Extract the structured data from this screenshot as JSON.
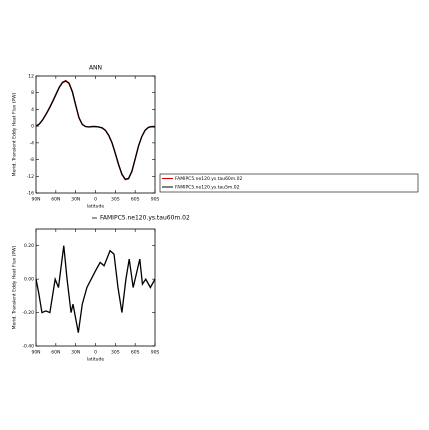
{
  "chart_data": [
    {
      "type": "line",
      "title": "ANN",
      "xlabel": "latitude",
      "ylabel": "Merid. Transient Eddy Heat Flux (PW)",
      "x": [
        90,
        85,
        80,
        75,
        70,
        65,
        60,
        55,
        50,
        45,
        40,
        35,
        30,
        25,
        20,
        15,
        10,
        5,
        0,
        -5,
        -10,
        -15,
        -20,
        -25,
        -30,
        -35,
        -40,
        -45,
        -50,
        -55,
        -60,
        -65,
        -70,
        -75,
        -80,
        -85,
        -90
      ],
      "series": [
        {
          "name": "FAMIPC5.ne120.ys.tau60m.02",
          "color": "#cc0000",
          "values": [
            0,
            0.5,
            1.5,
            2.8,
            4.3,
            5.9,
            7.6,
            9.3,
            10.5,
            10.9,
            10.3,
            8.3,
            5.1,
            2.0,
            0.4,
            -0.1,
            -0.2,
            -0.1,
            -0.1,
            -0.2,
            -0.4,
            -1.0,
            -2.2,
            -4.0,
            -6.6,
            -9.3,
            -11.6,
            -12.8,
            -12.6,
            -10.9,
            -7.9,
            -4.8,
            -2.5,
            -1.0,
            -0.3,
            -0.1,
            -0.2
          ]
        },
        {
          "name": "FAMIPC5.ne120.ys.tau5m.02",
          "color": "#000000",
          "values": [
            0,
            0.5,
            1.5,
            2.8,
            4.2,
            5.8,
            7.5,
            9.2,
            10.4,
            10.8,
            10.2,
            8.2,
            5.0,
            2.0,
            0.4,
            -0.1,
            -0.2,
            -0.1,
            -0.1,
            -0.2,
            -0.4,
            -1.0,
            -2.2,
            -4.0,
            -6.5,
            -9.2,
            -11.5,
            -12.7,
            -12.5,
            -10.8,
            -7.8,
            -4.8,
            -2.5,
            -1.0,
            -0.3,
            -0.1,
            -0.2
          ]
        }
      ],
      "xlim": [
        90,
        -90
      ],
      "xticks": [
        {
          "value": 90,
          "label": "90N"
        },
        {
          "value": 60,
          "label": "60N"
        },
        {
          "value": 30,
          "label": "30N"
        },
        0,
        {
          "value": -30,
          "label": "30S"
        },
        {
          "value": -60,
          "label": "60S"
        },
        {
          "value": -90,
          "label": "90S"
        }
      ],
      "ylim": [
        -16,
        12
      ],
      "yticks": [
        12,
        8,
        4,
        0,
        -4,
        -8,
        -12,
        -16
      ],
      "legend": "right"
    },
    {
      "type": "line",
      "xlabel": "latitude",
      "ylabel": "Merid. Transient Eddy Heat Flux (PW)",
      "x": [
        90,
        86,
        81,
        75,
        69,
        61,
        56,
        48,
        43,
        37,
        34,
        26,
        20,
        13,
        0,
        -7,
        -13,
        -22,
        -28,
        -34,
        -40,
        -46,
        -51,
        -57,
        -67,
        -71,
        -76,
        -83,
        -90
      ],
      "series": [
        {
          "name": "FAMIPC5.ne120.ys.tau60m.02",
          "color": "#000000",
          "values": [
            0.0,
            -0.08,
            -0.2,
            -0.19,
            -0.2,
            0.0,
            -0.05,
            0.2,
            0.0,
            -0.2,
            -0.15,
            -0.32,
            -0.15,
            -0.05,
            0.05,
            0.1,
            0.08,
            0.17,
            0.15,
            -0.05,
            -0.2,
            0.0,
            0.12,
            -0.05,
            0.12,
            -0.03,
            0.0,
            -0.05,
            0.0
          ]
        }
      ],
      "xlim": [
        90,
        -90
      ],
      "xticks": [
        {
          "value": 90,
          "label": "90N"
        },
        {
          "value": 60,
          "label": "60N"
        },
        {
          "value": 30,
          "label": "30N"
        },
        0,
        {
          "value": -30,
          "label": "30S"
        },
        {
          "value": -60,
          "label": "60S"
        },
        {
          "value": -90,
          "label": "90S"
        }
      ],
      "ylim": [
        -0.4,
        0.3
      ],
      "yticks": [
        {
          "value": 0.2,
          "label": "0.20"
        },
        {
          "value": 0,
          "label": "0.00"
        },
        {
          "value": -0.2,
          "label": "-0.20"
        },
        {
          "value": -0.4,
          "label": "-0.40"
        }
      ],
      "legend": "top"
    }
  ]
}
